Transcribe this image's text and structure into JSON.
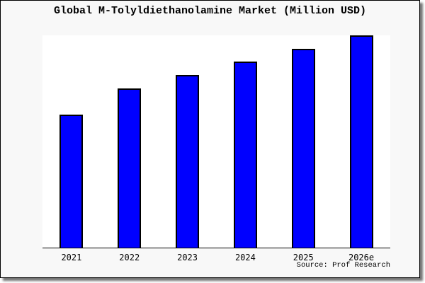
{
  "title": "Global M-Tolyldiethanolamine Market (Million USD)",
  "source_credit": "Source: Prof Research",
  "colors": {
    "bar_fill": "#0000ff",
    "bar_border": "#000000",
    "axis_line": "#000000",
    "canvas_bg": "#f8f8f8",
    "plot_bg": "#ffffff",
    "frame_border": "#000000"
  },
  "chart_data": {
    "type": "bar",
    "title": "Global M-Tolyldiethanolamine Market (Million USD)",
    "categories": [
      "2021",
      "2022",
      "2023",
      "2024",
      "2025",
      "2026e"
    ],
    "values": [
      62.7,
      75.0,
      81.3,
      87.6,
      93.6,
      100
    ],
    "values_unit": "relative bar height, % of tallest bar (no numeric y-axis shown)",
    "xlabel": "",
    "ylabel": "",
    "ylim": [
      0,
      100
    ],
    "grid": false,
    "legend": false
  }
}
